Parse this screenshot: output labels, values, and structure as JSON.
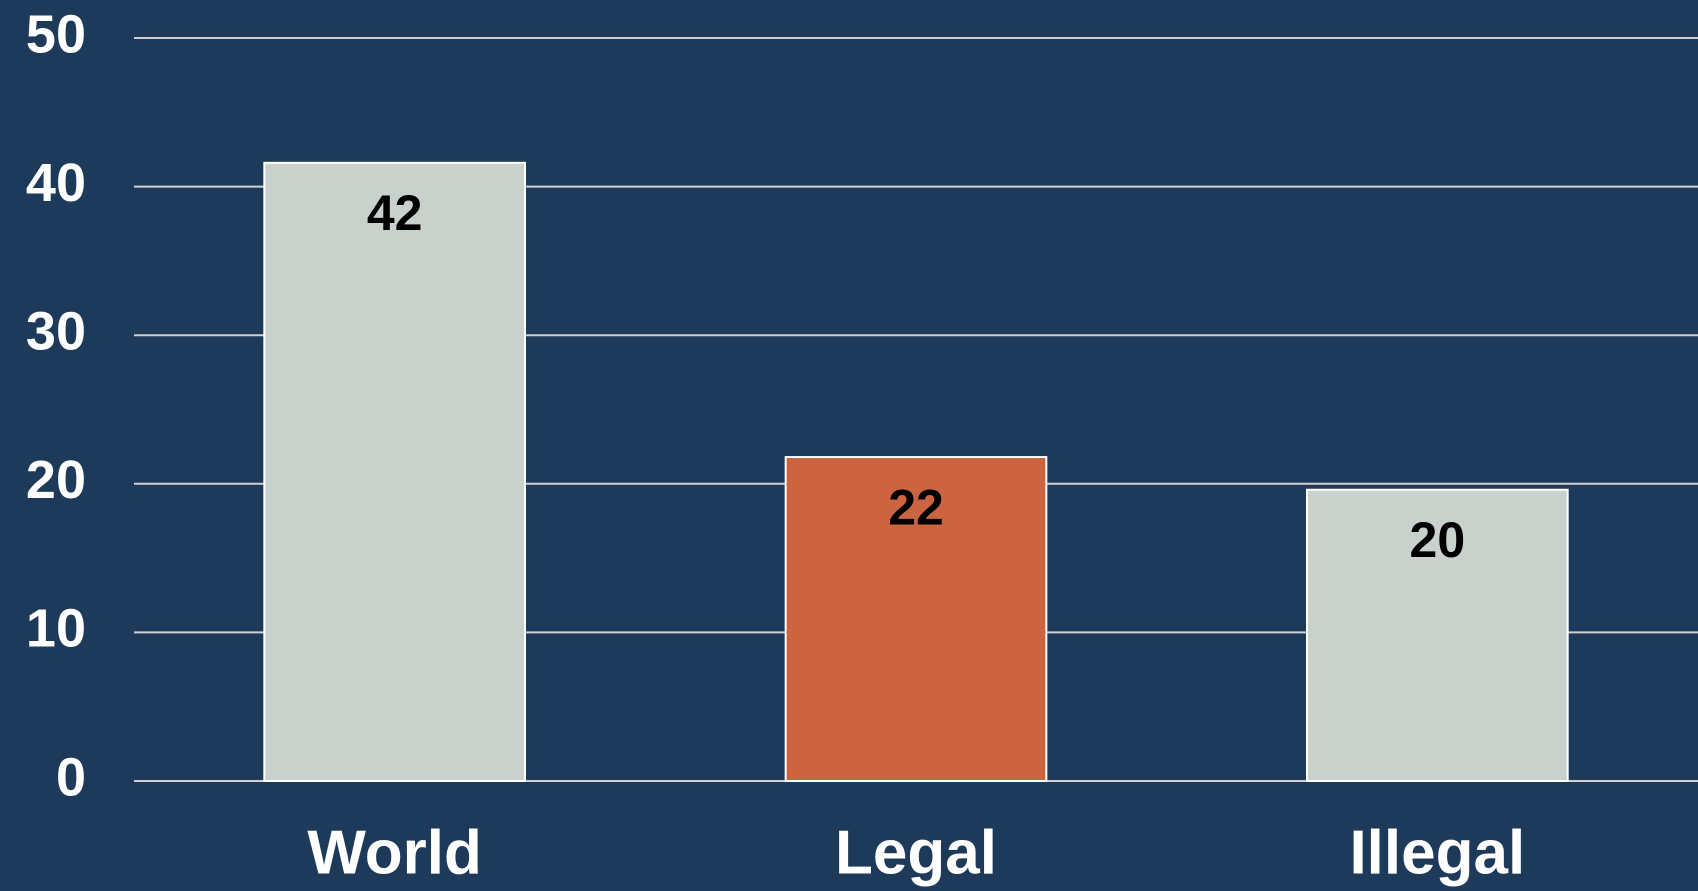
{
  "chart_data": {
    "type": "bar",
    "categories": [
      "World",
      "Legal",
      "Illegal"
    ],
    "values": [
      41.6,
      21.8,
      19.6
    ],
    "value_labels": [
      "42",
      "22",
      "20"
    ],
    "colors": [
      "#c8d1cc",
      "#cc6441",
      "#c8d1cc"
    ],
    "ylim": [
      0,
      50
    ],
    "yticks": [
      0,
      10,
      20,
      30,
      40,
      50
    ],
    "grid": true
  }
}
